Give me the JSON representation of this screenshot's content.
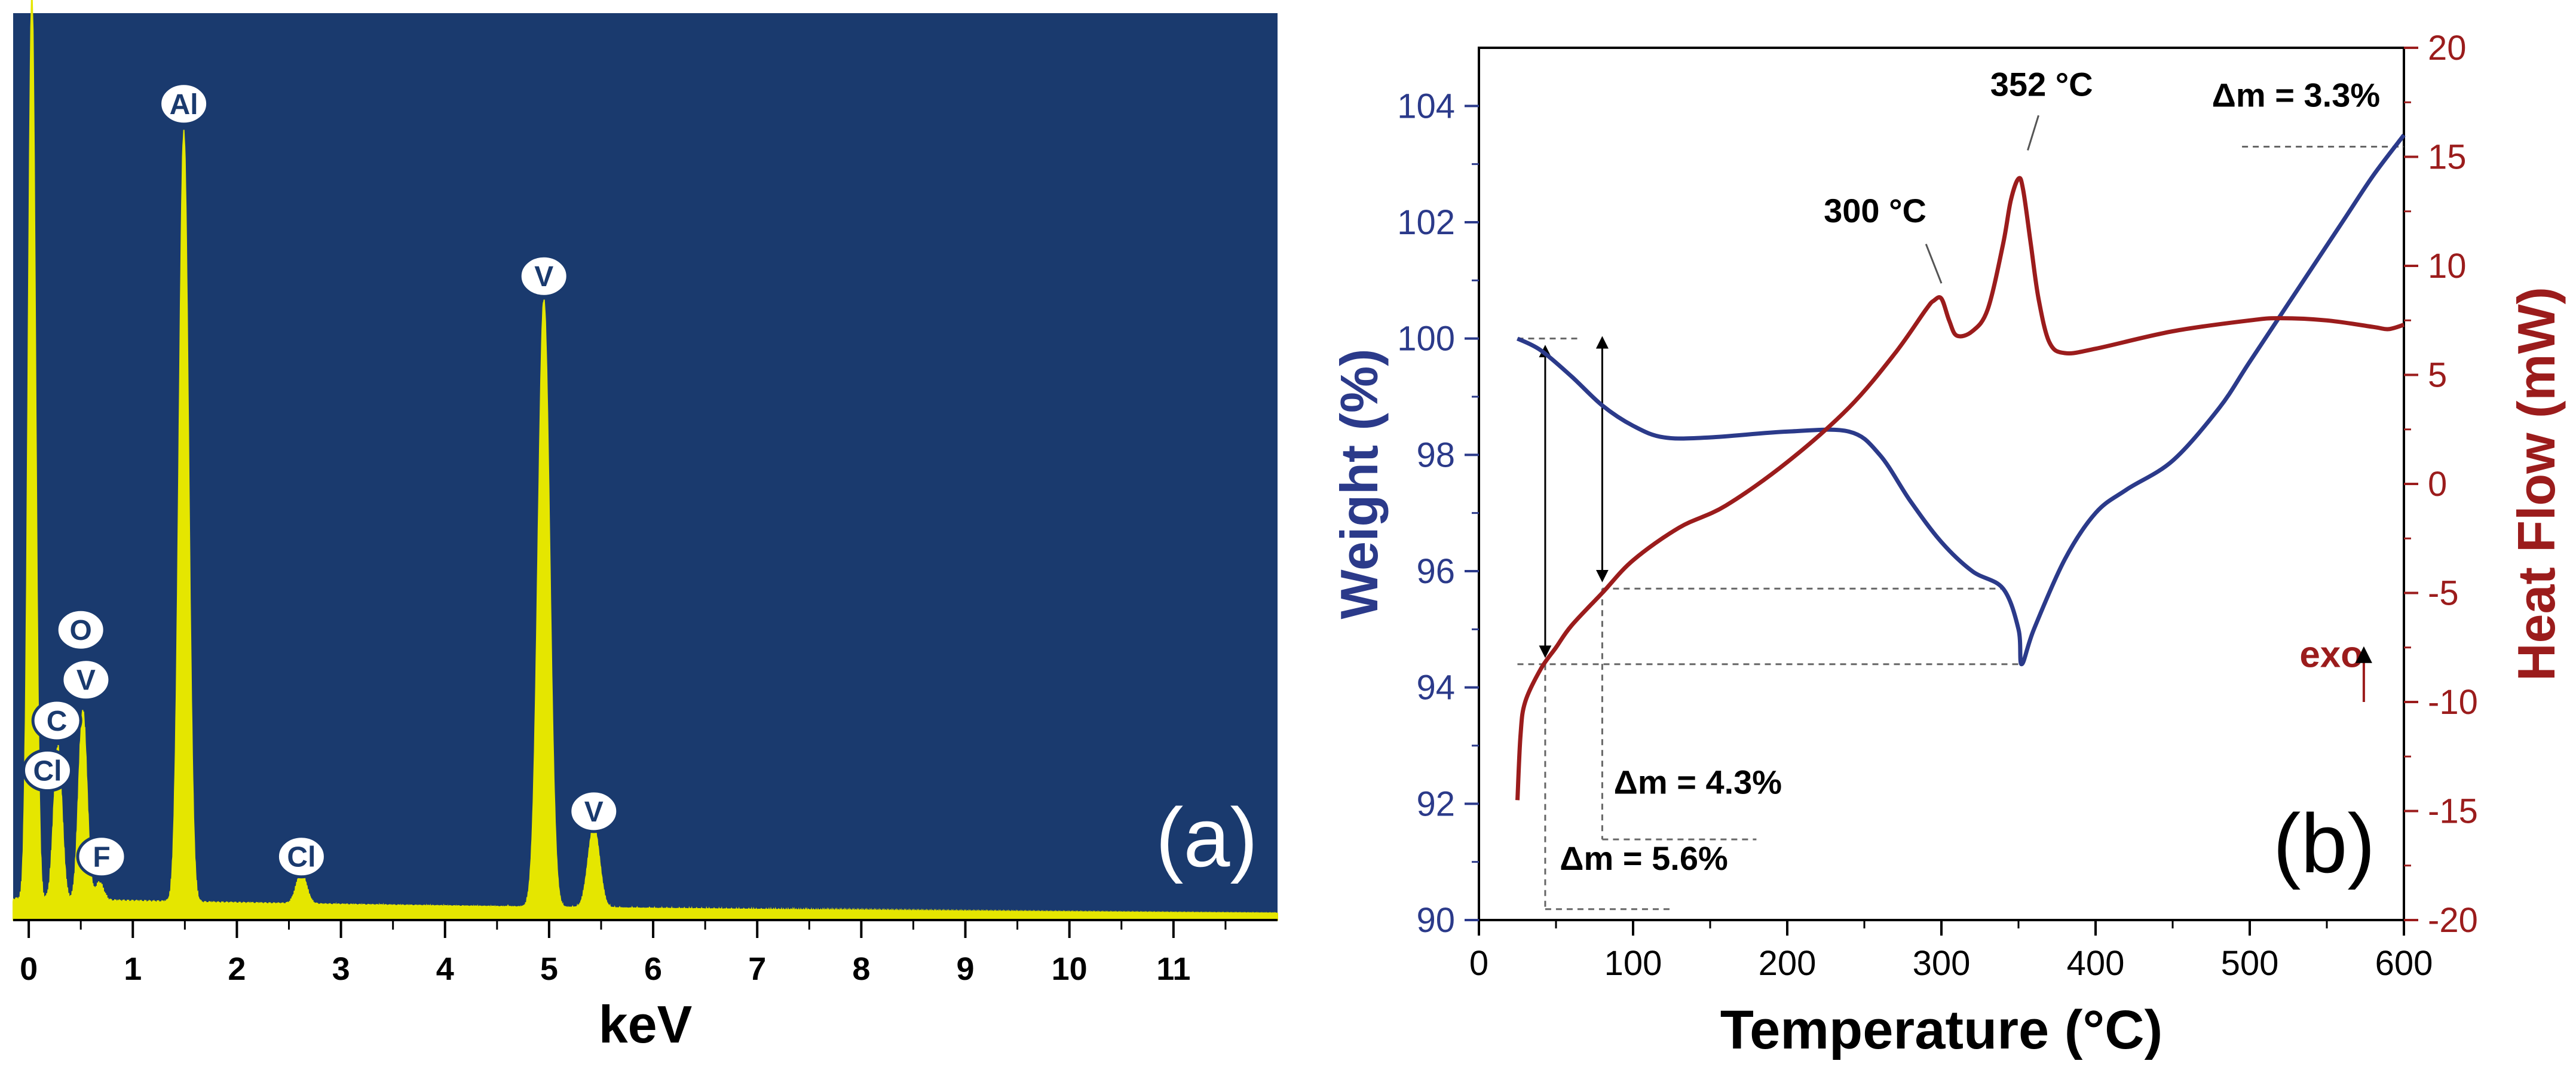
{
  "colors": {
    "eds_background": "#1a3a6e",
    "eds_spectrum": "#e5e600",
    "weight_curve": "#2b3a8a",
    "heat_curve": "#9b1c1c",
    "axis": "#000000",
    "guide": "#666666"
  },
  "chart_data": [
    {
      "type": "area",
      "panel_label": "(a)",
      "title": "",
      "xlabel": "keV",
      "ylabel": "",
      "xlim": [
        -0.15,
        12.0
      ],
      "ylim": [
        0,
        100
      ],
      "x_ticks": [
        0,
        1,
        2,
        3,
        4,
        5,
        6,
        7,
        8,
        9,
        10,
        11
      ],
      "x_tick_labels": [
        "0",
        "1",
        "2",
        "3",
        "4",
        "5",
        "6",
        "7",
        "8",
        "9",
        "10",
        "11"
      ],
      "grid": false,
      "series": [
        {
          "name": "EDS spectrum",
          "background": 2,
          "peaks": [
            {
              "x": 0.03,
              "height": 100,
              "width": 0.035
            },
            {
              "x": 0.28,
              "height": 17,
              "width": 0.04
            },
            {
              "x": 0.52,
              "height": 21,
              "width": 0.04
            },
            {
              "x": 0.68,
              "height": 2,
              "width": 0.04
            },
            {
              "x": 1.49,
              "height": 85,
              "width": 0.045
            },
            {
              "x": 2.62,
              "height": 3.5,
              "width": 0.05
            },
            {
              "x": 4.95,
              "height": 67,
              "width": 0.055
            },
            {
              "x": 5.43,
              "height": 9,
              "width": 0.055
            }
          ]
        }
      ],
      "annotations": [
        {
          "text": "Al",
          "x": 1.49,
          "y": 90
        },
        {
          "text": "V",
          "x": 4.95,
          "y": 71
        },
        {
          "text": "V",
          "x": 5.43,
          "y": 12
        },
        {
          "text": "Cl",
          "x": 2.62,
          "y": 7
        },
        {
          "text": "O",
          "x": 0.5,
          "y": 32
        },
        {
          "text": "V",
          "x": 0.55,
          "y": 26.5
        },
        {
          "text": "C",
          "x": 0.27,
          "y": 22
        },
        {
          "text": "Cl",
          "x": 0.18,
          "y": 16.5
        },
        {
          "text": "F",
          "x": 0.7,
          "y": 7
        }
      ]
    },
    {
      "type": "line",
      "panel_label": "(b)",
      "title": "",
      "xlabel": "Temperature (°C)",
      "ylabel": "Weight (%)",
      "y2label": "Heat Flow (mW)",
      "xlim": [
        0,
        600
      ],
      "ylim": [
        90,
        105
      ],
      "y2lim": [
        -20,
        20
      ],
      "x_ticks": [
        0,
        100,
        200,
        300,
        400,
        500,
        600
      ],
      "y_ticks": [
        90,
        92,
        94,
        96,
        98,
        100,
        102,
        104
      ],
      "y2_ticks": [
        -20,
        -15,
        -10,
        -5,
        0,
        5,
        10,
        15,
        20
      ],
      "grid": false,
      "series": [
        {
          "name": "Weight",
          "axis": "left",
          "x": [
            25,
            40,
            60,
            80,
            100,
            120,
            150,
            200,
            240,
            260,
            280,
            300,
            320,
            340,
            350,
            352,
            360,
            380,
            400,
            420,
            450,
            480,
            500,
            530,
            560,
            580,
            600
          ],
          "y": [
            100.0,
            99.8,
            99.35,
            98.85,
            98.5,
            98.3,
            98.3,
            98.4,
            98.4,
            98.0,
            97.2,
            96.5,
            96.0,
            95.7,
            95.0,
            94.4,
            95.0,
            96.2,
            97.0,
            97.4,
            97.9,
            98.8,
            99.6,
            100.8,
            102.0,
            102.8,
            103.5
          ]
        },
        {
          "name": "Heat Flow",
          "axis": "right",
          "x": [
            25,
            27,
            30,
            40,
            50,
            60,
            80,
            100,
            130,
            160,
            200,
            240,
            270,
            290,
            295,
            300,
            305,
            310,
            320,
            330,
            340,
            345,
            350,
            353,
            358,
            363,
            370,
            380,
            400,
            450,
            500,
            520,
            550,
            580,
            590,
            600
          ],
          "y": [
            -14.5,
            -11.5,
            -10.0,
            -8.5,
            -7.5,
            -6.5,
            -5.0,
            -3.5,
            -2.0,
            -1.0,
            1.0,
            3.5,
            6.0,
            8.0,
            8.4,
            8.5,
            7.5,
            6.8,
            7.0,
            8.0,
            11.0,
            13.0,
            14.0,
            13.5,
            11.0,
            8.5,
            6.5,
            6.0,
            6.2,
            7.0,
            7.5,
            7.6,
            7.5,
            7.2,
            7.1,
            7.3
          ]
        }
      ],
      "annotations": [
        {
          "text": "352 °C",
          "x": 365,
          "y2": 17.8
        },
        {
          "text": "300 °C",
          "x": 257,
          "y2": 12.0
        },
        {
          "text": "Δm = 3.3%",
          "x": 530,
          "y2": 17.3
        },
        {
          "text": "Δm = 4.3%",
          "x": 142,
          "y2": -14.2
        },
        {
          "text": "Δm = 5.6%",
          "x": 107,
          "y2": -17.7
        },
        {
          "text": "exo",
          "x": 553,
          "y2": -8.4
        }
      ]
    }
  ]
}
